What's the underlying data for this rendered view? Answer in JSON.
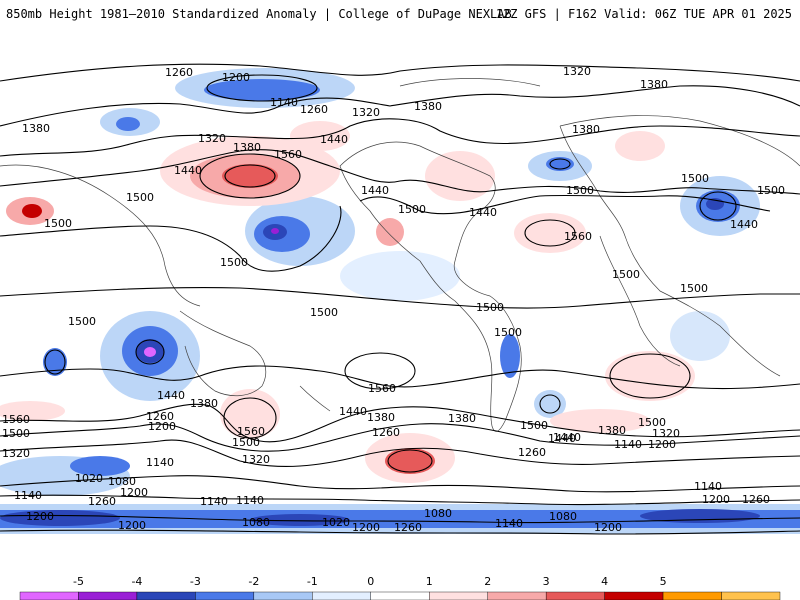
{
  "header": {
    "left_title": "850mb Height 1981–2010 Standardized Anomaly | College of DuPage NEXLAB",
    "right_title": "12Z GFS | F162 Valid: 06Z TUE APR 01 2025"
  },
  "contour_labels": [
    "1260",
    "1200",
    "1140",
    "1260",
    "1320",
    "1320",
    "1380",
    "1380",
    "1440",
    "1380",
    "1320",
    "1380",
    "1560",
    "1440",
    "1440",
    "1500",
    "1500",
    "1440",
    "1380",
    "1500",
    "1500",
    "1560",
    "1500",
    "1500",
    "1440",
    "1500",
    "1500",
    "1500",
    "1500",
    "1500",
    "1440",
    "1380",
    "1560",
    "1500",
    "1560",
    "1500",
    "1440",
    "1380",
    "1260",
    "1560",
    "1500",
    "1320",
    "1260",
    "1200",
    "1140",
    "1320",
    "1200",
    "1140",
    "1020",
    "1080",
    "1140",
    "1200",
    "1260",
    "1200",
    "1140",
    "1080",
    "1020",
    "1080",
    "1200",
    "1260",
    "1140",
    "1080",
    "1200",
    "1440",
    "1380",
    "1320",
    "1500",
    "1500",
    "1140",
    "1200",
    "1260",
    "1140",
    "1200",
    "1260",
    "1380",
    "1440",
    "1500"
  ],
  "colorbar": {
    "tick_labels": [
      "-5",
      "-4",
      "-3",
      "-2",
      "-1",
      "0",
      "1",
      "2",
      "3",
      "4",
      "5"
    ],
    "colors": [
      "#e066ff",
      "#9a1fd6",
      "#2b46b8",
      "#4a79e8",
      "#a8c8f5",
      "#e3efff",
      "#ffffff",
      "#ffe0e0",
      "#f7a9a9",
      "#e65a5a",
      "#c40000",
      "#ff9a00",
      "#ffc24d"
    ]
  }
}
